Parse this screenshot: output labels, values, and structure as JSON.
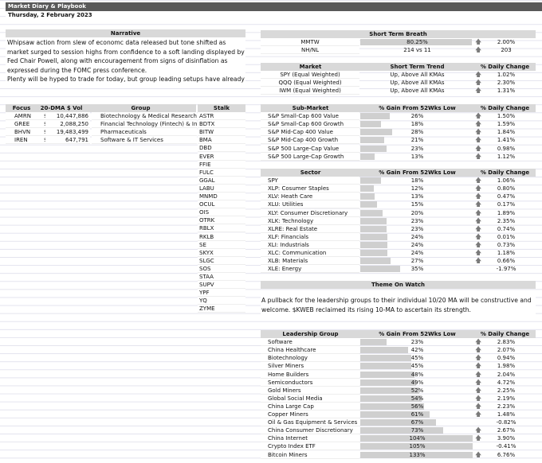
{
  "title": "Market Diary & Playbook",
  "date": "Thursday, 2 February 2023",
  "narrative": {
    "header": "Narrative",
    "p1": "Whipsaw action from slew of economc data released but tone shifted as market surged to session highs from confidence to a soft landing displayed by Fed Chair Powell, along with encouragement from signs of disinflation as expressed during the FOMC press conference.",
    "p2": "Plenty will be hyped to trade for today, but group leading setups have already took off during yesterday's surge."
  },
  "focus": {
    "headers": [
      "Focus",
      "20-DMA $ Vol",
      "Group"
    ],
    "rows": [
      {
        "ticker": "AMRN",
        "cur": "$",
        "vol": "10,447,886",
        "group": "Biotechnology & Medical Research"
      },
      {
        "ticker": "GREE",
        "cur": "$",
        "vol": "2,088,250",
        "group": "Financial Technology (Fintech) & Inf"
      },
      {
        "ticker": "BHVN",
        "cur": "$",
        "vol": "19,483,499",
        "group": "Pharmaceuticals"
      },
      {
        "ticker": "IREN",
        "cur": "$",
        "vol": "647,791",
        "group": "Software & IT Services"
      }
    ]
  },
  "stalk": {
    "header": "Stalk",
    "items": [
      "ASTR",
      "BDTX",
      "BITW",
      "BMA",
      "DBD",
      "EVER",
      "FFIE",
      "FULC",
      "GGAL",
      "LABU",
      "MNMD",
      "OCUL",
      "OIS",
      "OTRK",
      "RBLX",
      "RKLB",
      "SE",
      "SKYX",
      "SLGC",
      "SOS",
      "STAA",
      "SUPV",
      "YPF",
      "YQ",
      "ZYME"
    ]
  },
  "breadth": {
    "header": "Short Term Breath",
    "rows": [
      {
        "label": "MMTW",
        "value": "80.25%",
        "pct": 80.25,
        "dir": "up",
        "change": "2.00%"
      },
      {
        "label": "NH/NL",
        "value": "214 vs 11",
        "dir": "up",
        "change": "203"
      }
    ]
  },
  "market": {
    "headers": [
      "Market",
      "Short Term Trend",
      "% Daily Change"
    ],
    "rows": [
      {
        "label": "SPY (Equal Weighted)",
        "trend": "Up, Above All KMAs",
        "dir": "up",
        "change": "1.02%"
      },
      {
        "label": "QQQ (Equal Weighted)",
        "trend": "Up, Above All KMAs",
        "dir": "up",
        "change": "2.30%"
      },
      {
        "label": "IWM (Equal Weighted)",
        "trend": "Up, Above All KMAs",
        "dir": "up",
        "change": "1.31%"
      }
    ]
  },
  "submarket": {
    "headers": [
      "Sub-Market",
      "% Gain From 52Wks Low",
      "% Daily Change"
    ],
    "rows": [
      {
        "label": "S&P Small-Cap 600 Value",
        "gain": "26%",
        "pct": 26,
        "dir": "up",
        "change": "1.50%"
      },
      {
        "label": "S&P Small-Cap 600 Growth",
        "gain": "18%",
        "pct": 18,
        "dir": "up",
        "change": "1.59%"
      },
      {
        "label": "S&P Mid-Cap 400 Value",
        "gain": "28%",
        "pct": 28,
        "dir": "up",
        "change": "1.84%"
      },
      {
        "label": "S&P Mid-Cap 400 Growth",
        "gain": "21%",
        "pct": 21,
        "dir": "up",
        "change": "1.41%"
      },
      {
        "label": "S&P 500 Large-Cap Value",
        "gain": "23%",
        "pct": 23,
        "dir": "up",
        "change": "0.98%"
      },
      {
        "label": "S&P 500 Large-Cap Growth",
        "gain": "13%",
        "pct": 13,
        "dir": "up",
        "change": "1.12%"
      }
    ]
  },
  "sector": {
    "headers": [
      "Sector",
      "% Gain From 52Wks Low",
      "% Daily Change"
    ],
    "rows": [
      {
        "label": "SPY",
        "gain": "18%",
        "pct": 18,
        "dir": "up",
        "change": "1.06%"
      },
      {
        "label": "XLP:  Cosumer Staples",
        "gain": "12%",
        "pct": 12,
        "dir": "up",
        "change": "0.80%"
      },
      {
        "label": "XLV:  Heath Care",
        "gain": "13%",
        "pct": 13,
        "dir": "up",
        "change": "0.47%"
      },
      {
        "label": "XLU:  Utilities",
        "gain": "15%",
        "pct": 15,
        "dir": "up",
        "change": "0.17%"
      },
      {
        "label": "XLY:  Consumer Discretionary",
        "gain": "20%",
        "pct": 20,
        "dir": "up",
        "change": "1.89%"
      },
      {
        "label": "XLK:  Technology",
        "gain": "23%",
        "pct": 23,
        "dir": "up",
        "change": "2.35%"
      },
      {
        "label": "XLRE: Real Estate",
        "gain": "23%",
        "pct": 23,
        "dir": "up",
        "change": "0.74%"
      },
      {
        "label": "XLF:  Financials",
        "gain": "24%",
        "pct": 24,
        "dir": "up",
        "change": "0.01%"
      },
      {
        "label": "XLI:   Industrials",
        "gain": "24%",
        "pct": 24,
        "dir": "up",
        "change": "0.73%"
      },
      {
        "label": "XLC:  Communication",
        "gain": "24%",
        "pct": 24,
        "dir": "up",
        "change": "1.18%"
      },
      {
        "label": "XLB:   Materials",
        "gain": "27%",
        "pct": 27,
        "dir": "up",
        "change": "0.66%"
      },
      {
        "label": "XLE:  Energy",
        "gain": "35%",
        "pct": 35,
        "dir": "none",
        "change": "-1.97%"
      }
    ]
  },
  "theme": {
    "header": "Theme On Watch",
    "text": "A pullback for the leadership groups to their individual 10/20 MA will be constructive and welcome. $KWEB reclaimed its rising 10-MA to ascertain its strength."
  },
  "leadership": {
    "headers": [
      "Leadership Group",
      "% Gain From 52Wks Low",
      "% Daily Change"
    ],
    "rows": [
      {
        "label": "Software",
        "gain": "23%",
        "pct": 23,
        "dir": "up",
        "change": "2.83%"
      },
      {
        "label": "China Healthcare",
        "gain": "42%",
        "pct": 42,
        "dir": "up",
        "change": "2.07%"
      },
      {
        "label": "Biotechnology",
        "gain": "45%",
        "pct": 45,
        "dir": "up",
        "change": "0.94%"
      },
      {
        "label": "Silver Miners",
        "gain": "45%",
        "pct": 45,
        "dir": "up",
        "change": "1.98%"
      },
      {
        "label": "Home Builders",
        "gain": "48%",
        "pct": 48,
        "dir": "up",
        "change": "2.04%"
      },
      {
        "label": "Semiconductors",
        "gain": "49%",
        "pct": 49,
        "dir": "up",
        "change": "4.72%"
      },
      {
        "label": "Gold Miners",
        "gain": "52%",
        "pct": 52,
        "dir": "up",
        "change": "2.25%"
      },
      {
        "label": "Global Social Media",
        "gain": "54%",
        "pct": 54,
        "dir": "up",
        "change": "2.19%"
      },
      {
        "label": "China Large Cap",
        "gain": "56%",
        "pct": 56,
        "dir": "up",
        "change": "2.23%"
      },
      {
        "label": "Copper Miners",
        "gain": "61%",
        "pct": 61,
        "dir": "up",
        "change": "1.48%"
      },
      {
        "label": "Oil & Gas Equipment & Services",
        "gain": "67%",
        "pct": 67,
        "dir": "none",
        "change": "-0.82%"
      },
      {
        "label": "China Consumer Discretionary",
        "gain": "73%",
        "pct": 73,
        "dir": "up",
        "change": "2.67%"
      },
      {
        "label": "China Internet",
        "gain": "104%",
        "pct": 104,
        "dir": "up",
        "change": "3.90%"
      },
      {
        "label": "Crypto Index ETF",
        "gain": "105%",
        "pct": 105,
        "dir": "none",
        "change": "-0.41%"
      },
      {
        "label": "Bitcoin Miners",
        "gain": "133%",
        "pct": 133,
        "dir": "up",
        "change": "6.76%"
      }
    ]
  },
  "colors": {
    "header_bg": "#d9d9d9",
    "title_bg": "#595959",
    "bar": "#cfcfcf",
    "arrow": "#7a7a7a"
  }
}
